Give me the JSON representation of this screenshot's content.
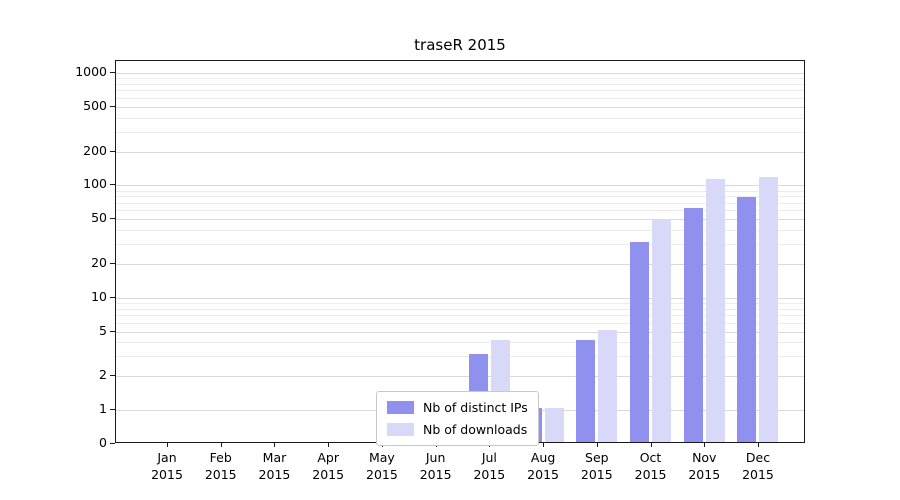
{
  "chart_data": {
    "type": "bar",
    "title": "traseR 2015",
    "x_categories": [
      "Jan",
      "Feb",
      "Mar",
      "Apr",
      "May",
      "Jun",
      "Jul",
      "Aug",
      "Sep",
      "Oct",
      "Nov",
      "Dec"
    ],
    "x_year": "2015",
    "series": [
      {
        "name": "Nb of distinct IPs",
        "color": "#9090ee",
        "values": [
          0,
          0,
          0,
          0,
          0,
          0,
          3,
          1,
          4,
          30,
          60,
          75
        ]
      },
      {
        "name": "Nb of downloads",
        "color": "#d8d8f8",
        "values": [
          0,
          0,
          0,
          0,
          0,
          0,
          4,
          1,
          5,
          48,
          110,
          115
        ]
      }
    ],
    "y_ticks": [
      0,
      1,
      2,
      5,
      10,
      20,
      50,
      100,
      200,
      500,
      1000
    ],
    "y_scale": "log",
    "ylim": [
      0,
      1000
    ],
    "grid": true,
    "legend": {
      "position": "bottom-center",
      "entries": [
        "Nb of distinct IPs",
        "Nb of downloads"
      ]
    }
  }
}
